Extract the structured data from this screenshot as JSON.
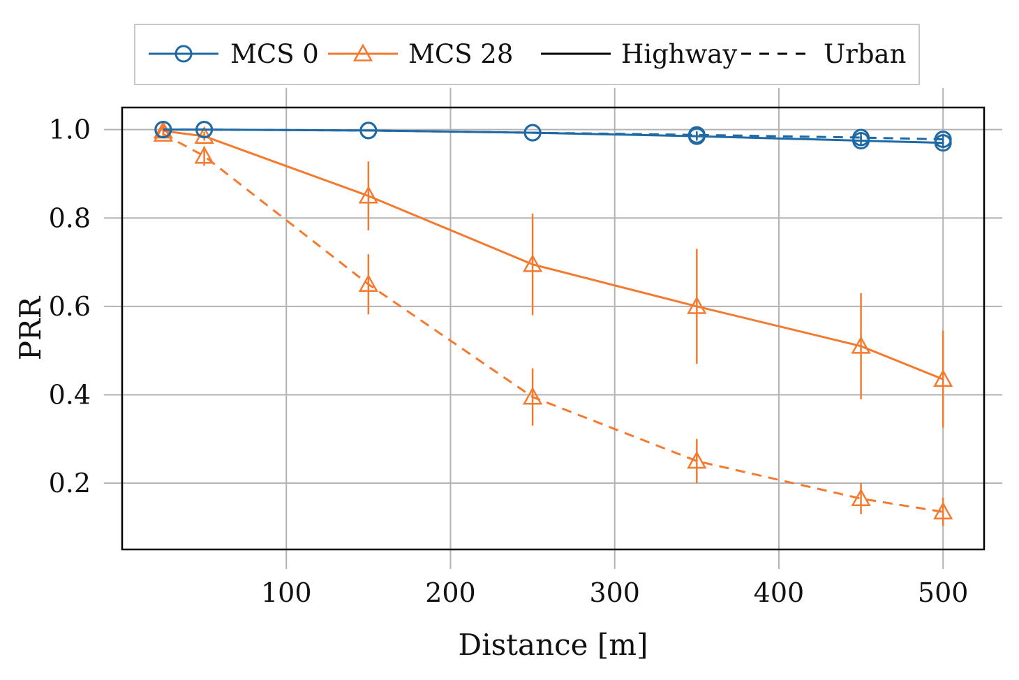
{
  "chart_data": {
    "type": "line",
    "xlabel": "Distance [m]",
    "ylabel": "PRR",
    "xlim": [
      0,
      525
    ],
    "ylim": [
      0.05,
      1.05
    ],
    "xticks": [
      100,
      200,
      300,
      400,
      500
    ],
    "yticks": [
      0.2,
      0.4,
      0.6,
      0.8,
      1.0
    ],
    "xtick_labels": [
      "100",
      "200",
      "300",
      "400",
      "500"
    ],
    "ytick_labels": [
      "0.2",
      "0.4",
      "0.6",
      "0.8",
      "1.0"
    ],
    "grid": true,
    "legend_position": "top-center",
    "legend": [
      {
        "label": "MCS 0",
        "color": "#1f6aa5",
        "marker": "circle",
        "style": "solid"
      },
      {
        "label": "MCS 28",
        "color": "#f47a30",
        "marker": "triangle",
        "style": "solid"
      },
      {
        "label": "Highway",
        "color": "#000000",
        "marker": "none",
        "style": "solid"
      },
      {
        "label": "Urban",
        "color": "#000000",
        "marker": "none",
        "style": "dashed"
      }
    ],
    "x": [
      25,
      50,
      150,
      250,
      350,
      450,
      500
    ],
    "series": [
      {
        "name": "MCS 0 Highway",
        "color": "#1f6aa5",
        "marker": "circle",
        "dash": false,
        "values": [
          1.0,
          1.0,
          0.998,
          0.993,
          0.985,
          0.975,
          0.97
        ],
        "err": [
          0,
          0,
          0,
          0,
          0.01,
          0.01,
          0.012
        ]
      },
      {
        "name": "MCS 0 Urban",
        "color": "#1f6aa5",
        "marker": "circle",
        "dash": true,
        "values": [
          1.0,
          1.0,
          0.998,
          0.993,
          0.988,
          0.982,
          0.978
        ],
        "err": [
          0,
          0,
          0,
          0,
          0.008,
          0.008,
          0.01
        ]
      },
      {
        "name": "MCS 28 Highway",
        "color": "#f47a30",
        "marker": "triangle",
        "dash": false,
        "values": [
          0.997,
          0.985,
          0.85,
          0.695,
          0.6,
          0.51,
          0.435
        ],
        "err": [
          0.01,
          0.01,
          0.078,
          0.115,
          0.13,
          0.12,
          0.11
        ]
      },
      {
        "name": "MCS 28 Urban",
        "color": "#f47a30",
        "marker": "triangle",
        "dash": true,
        "values": [
          0.99,
          0.94,
          0.65,
          0.395,
          0.25,
          0.165,
          0.135
        ],
        "err": [
          0.01,
          0.022,
          0.068,
          0.065,
          0.05,
          0.035,
          0.032
        ]
      }
    ]
  }
}
